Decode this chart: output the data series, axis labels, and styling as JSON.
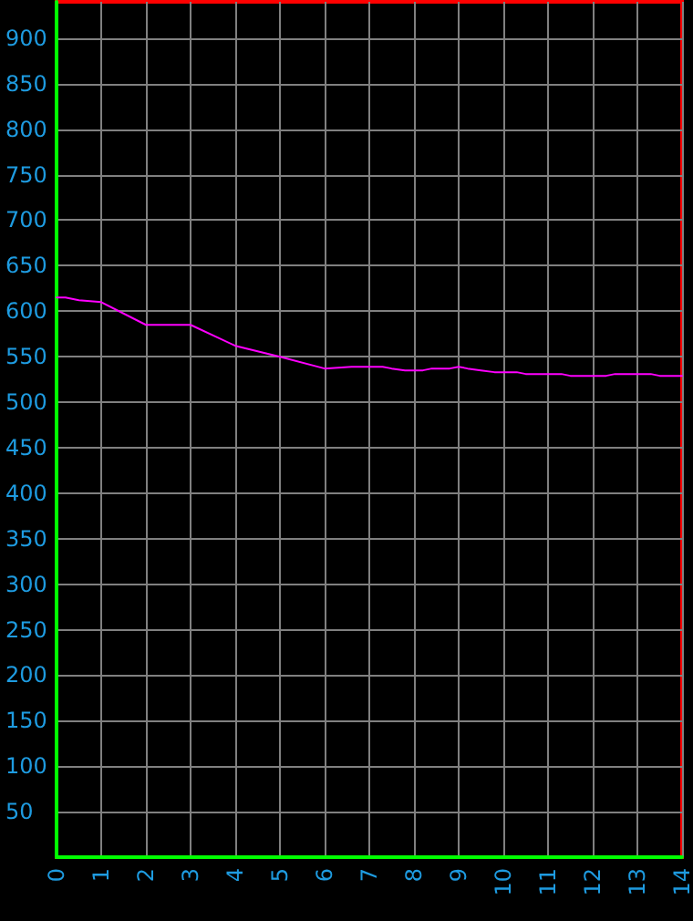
{
  "chart_data": {
    "type": "line",
    "x": [
      0,
      0.2,
      0.5,
      1,
      2,
      3,
      4,
      5,
      6,
      6.6,
      7.3,
      7.5,
      7.8,
      8.2,
      8.4,
      8.8,
      9,
      9.2,
      9.5,
      9.8,
      10.3,
      10.5,
      11.3,
      11.5,
      12.3,
      12.5,
      13.3,
      13.5,
      14
    ],
    "series": [
      {
        "color": "#ff00ff",
        "values": [
          615,
          615,
          612,
          610,
          585,
          585,
          562,
          550,
          537,
          539,
          539,
          537,
          535,
          535,
          537,
          537,
          539,
          537,
          535,
          533,
          533,
          531,
          531,
          529,
          529,
          531,
          531,
          529,
          529
        ]
      }
    ],
    "xlim": [
      0,
      14
    ],
    "xticks": [
      0,
      1,
      2,
      3,
      4,
      5,
      6,
      7,
      8,
      9,
      10,
      11,
      12,
      13,
      14
    ],
    "ylim": [
      0,
      940
    ],
    "yticks": [
      {
        "value": 0,
        "label": null
      },
      50,
      100,
      150,
      200,
      250,
      300,
      350,
      400,
      450,
      500,
      550,
      600,
      650,
      700,
      750,
      800,
      850,
      900
    ],
    "grid": true,
    "marker": "none",
    "line_style": "solid"
  }
}
